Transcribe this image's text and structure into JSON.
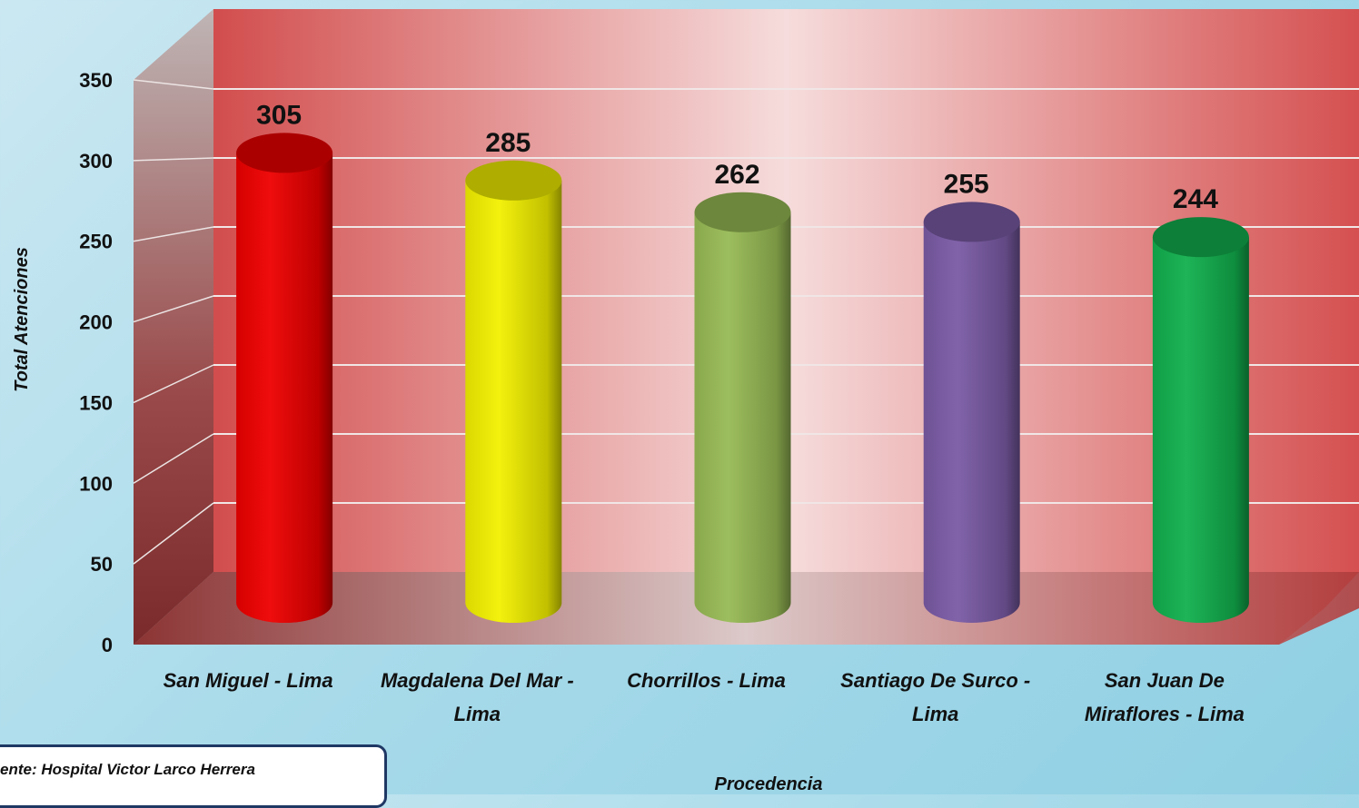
{
  "chart_data": {
    "type": "bar",
    "categories": [
      [
        "San Miguel - Lima"
      ],
      [
        "Magdalena Del Mar -",
        "Lima"
      ],
      [
        "Chorrillos - Lima"
      ],
      [
        "Santiago De Surco -",
        "Lima"
      ],
      [
        "San Juan De",
        "Miraflores - Lima"
      ]
    ],
    "values": [
      305,
      285,
      262,
      255,
      244
    ],
    "colors": [
      "#ee0000",
      "#f2f000",
      "#98bb55",
      "#7a5ba5",
      "#12b04e"
    ],
    "xlabel": "Procedencia",
    "ylabel": "Total Atenciones",
    "ylim": [
      0,
      350
    ],
    "yticks": [
      0,
      50,
      100,
      150,
      200,
      250,
      300,
      350
    ],
    "grid": true,
    "style": "3d-cylinder"
  },
  "source": {
    "text": "ente:  Hospital Victor Larco Herrera"
  }
}
